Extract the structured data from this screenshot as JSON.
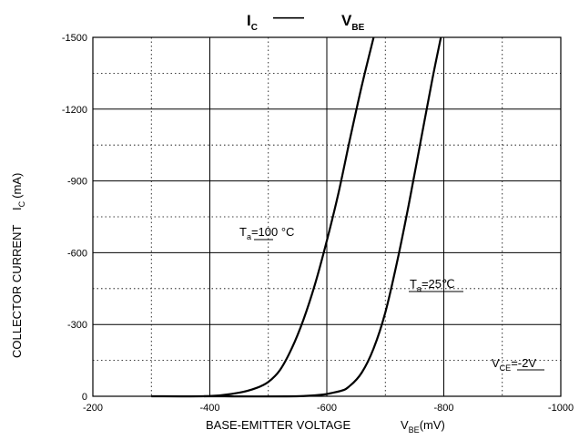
{
  "chart_data": {
    "type": "line",
    "title": {
      "left_main": "I",
      "left_sub": "C",
      "dash": "——",
      "right_main": "V",
      "right_sub": "BE"
    },
    "xlabel": {
      "main": "BASE-EMITTER VOLTAGE",
      "var": "V",
      "var_sub": "BE",
      "unit": "(mV)"
    },
    "ylabel": {
      "main": "COLLECTOR CURRENT",
      "var": "I",
      "var_sub": "C",
      "unit": "(mA)"
    },
    "x_ticks": [
      "-200",
      "-400",
      "-600",
      "-800",
      "-1000"
    ],
    "x_tick_values": [
      -200,
      -400,
      -600,
      -800,
      -1000
    ],
    "y_ticks": [
      "0",
      "-300",
      "-600",
      "-900",
      "-1200",
      "-1500"
    ],
    "y_tick_values": [
      0,
      -300,
      -600,
      -900,
      -1200,
      -1500
    ],
    "xlim": [
      -200,
      -1000
    ],
    "ylim": [
      0,
      -1500
    ],
    "grid": {
      "major": true,
      "minor_dotted": true
    },
    "series": [
      {
        "label_main": "T",
        "label_sub": "a",
        "label_rest": "=100 °C",
        "x": [
          -300,
          -400,
          -450,
          -480,
          -500,
          -520,
          -540,
          -560,
          -580,
          -600,
          -620,
          -640,
          -660,
          -680
        ],
        "y": [
          0,
          -1,
          -15,
          -35,
          -60,
          -110,
          -200,
          -320,
          -470,
          -650,
          -850,
          -1080,
          -1300,
          -1500
        ]
      },
      {
        "label_main": "T",
        "label_sub": "a",
        "label_rest": "=25℃",
        "x": [
          -390,
          -560,
          -620,
          -640,
          -660,
          -680,
          -700,
          -720,
          -740,
          -760,
          -780,
          -795
        ],
        "y": [
          0,
          -1,
          -20,
          -45,
          -100,
          -200,
          -350,
          -560,
          -800,
          -1060,
          -1320,
          -1500
        ]
      }
    ],
    "annotation": {
      "main": "V",
      "sub": "CE",
      "rest": "=-2V"
    }
  }
}
